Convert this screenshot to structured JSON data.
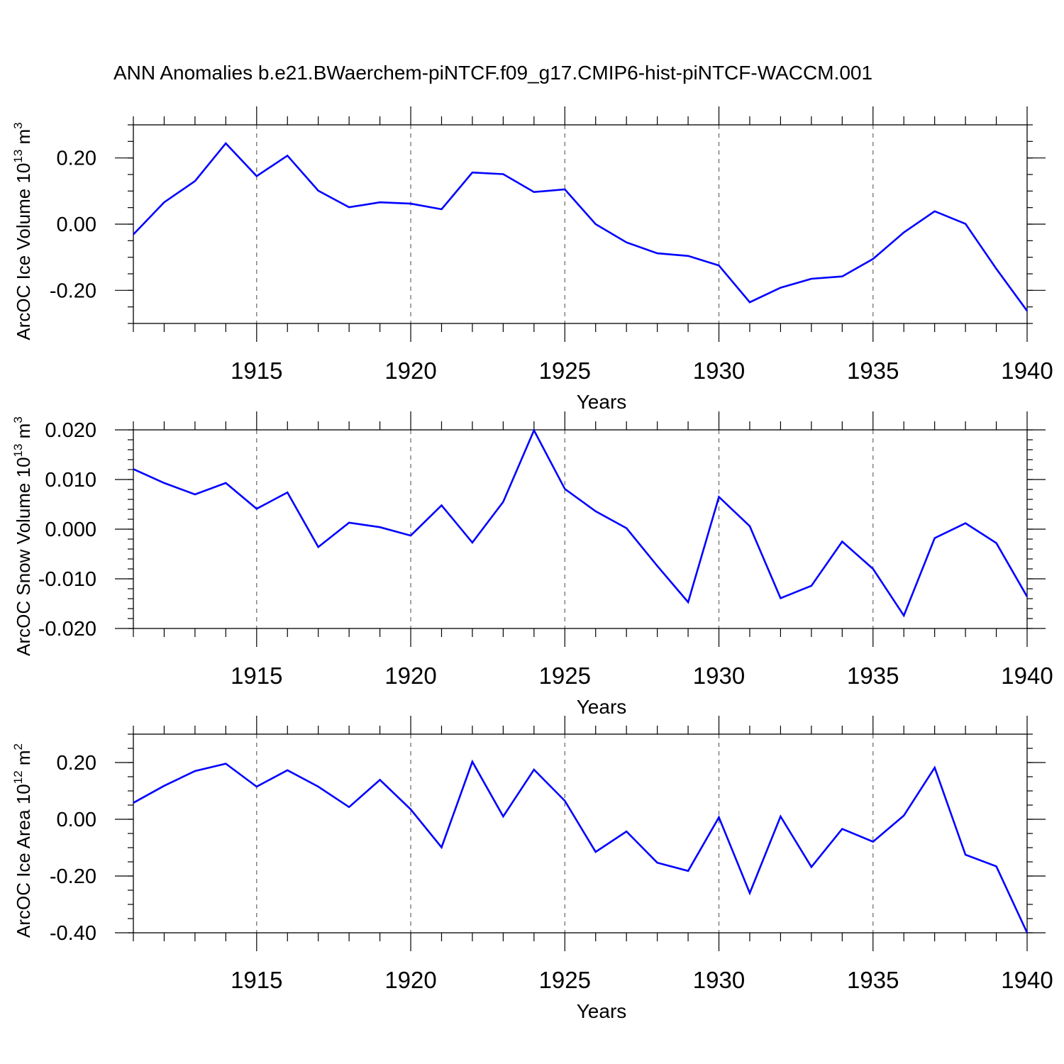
{
  "title": "ANN Anomalies b.e21.BWaerchem-piNTCF.f09_g17.CMIP6-hist-piNTCF-WACCM.001",
  "series_color": "#0000ff",
  "chart_data": [
    {
      "type": "line",
      "ylabel_main": "ArcOC Ice Volume 10",
      "ylabel_exp": "13",
      "ylabel_unit": " m",
      "ylabel_unit_exp": "3",
      "xlabel": "Years",
      "xlim": [
        1911,
        1940
      ],
      "ylim": [
        -0.3,
        0.3
      ],
      "yticks": [
        0.2,
        0.0,
        -0.2
      ],
      "ytick_labels": [
        "0.20",
        "0.00",
        "-0.20"
      ],
      "yminor_step": 0.05,
      "xticks": [
        1915,
        1920,
        1925,
        1930,
        1935,
        1940
      ],
      "xtick_labels": [
        "1915",
        "1920",
        "1925",
        "1930",
        "1935",
        "1940"
      ],
      "x": [
        1911,
        1912,
        1913,
        1914,
        1915,
        1916,
        1917,
        1918,
        1919,
        1920,
        1921,
        1922,
        1923,
        1924,
        1925,
        1926,
        1927,
        1928,
        1929,
        1930,
        1931,
        1932,
        1933,
        1934,
        1935,
        1936,
        1937,
        1938,
        1939,
        1940
      ],
      "values": [
        -0.031,
        0.066,
        0.13,
        0.244,
        0.145,
        0.207,
        0.101,
        0.051,
        0.066,
        0.062,
        0.045,
        0.156,
        0.151,
        0.097,
        0.105,
        0.0,
        -0.055,
        -0.088,
        -0.096,
        -0.125,
        -0.236,
        -0.192,
        -0.165,
        -0.158,
        -0.105,
        -0.025,
        0.039,
        0.001,
        -0.135,
        -0.262
      ]
    },
    {
      "type": "line",
      "ylabel_main": "ArcOC Snow Volume 10",
      "ylabel_exp": "13",
      "ylabel_unit": " m",
      "ylabel_unit_exp": "3",
      "xlabel": "Years",
      "xlim": [
        1911,
        1940
      ],
      "ylim": [
        -0.02,
        0.02
      ],
      "yticks": [
        0.02,
        0.01,
        0.0,
        -0.01,
        -0.02
      ],
      "ytick_labels": [
        "0.020",
        "0.010",
        "0.000",
        "-0.010",
        "-0.020"
      ],
      "yminor_step": 0.002,
      "xticks": [
        1915,
        1920,
        1925,
        1930,
        1935,
        1940
      ],
      "xtick_labels": [
        "1915",
        "1920",
        "1925",
        "1930",
        "1935",
        "1940"
      ],
      "x": [
        1911,
        1912,
        1913,
        1914,
        1915,
        1916,
        1917,
        1918,
        1919,
        1920,
        1921,
        1922,
        1923,
        1924,
        1925,
        1926,
        1927,
        1928,
        1929,
        1930,
        1931,
        1932,
        1933,
        1934,
        1935,
        1936,
        1937,
        1938,
        1939,
        1940
      ],
      "values": [
        0.0121,
        0.0093,
        0.007,
        0.0093,
        0.0041,
        0.0074,
        -0.0036,
        0.0013,
        0.0004,
        -0.0013,
        0.0048,
        -0.0027,
        0.0055,
        0.0199,
        0.0081,
        0.0036,
        0.0002,
        -0.0074,
        -0.0147,
        0.0065,
        0.0006,
        -0.0139,
        -0.0114,
        -0.0025,
        -0.008,
        -0.0174,
        -0.0018,
        0.0012,
        -0.0028,
        -0.0136
      ]
    },
    {
      "type": "line",
      "ylabel_main": "ArcOC Ice Area 10",
      "ylabel_exp": "12",
      "ylabel_unit": " m",
      "ylabel_unit_exp": "2",
      "xlabel": "Years",
      "xlim": [
        1911,
        1940
      ],
      "ylim": [
        -0.4,
        0.3
      ],
      "yticks": [
        0.2,
        0.0,
        -0.2,
        -0.4
      ],
      "ytick_labels": [
        "0.20",
        "0.00",
        "-0.20",
        "-0.40"
      ],
      "yminor_step": 0.05,
      "xticks": [
        1915,
        1920,
        1925,
        1930,
        1935,
        1940
      ],
      "xtick_labels": [
        "1915",
        "1920",
        "1925",
        "1930",
        "1935",
        "1940"
      ],
      "x": [
        1911,
        1912,
        1913,
        1914,
        1915,
        1916,
        1917,
        1918,
        1919,
        1920,
        1921,
        1922,
        1923,
        1924,
        1925,
        1926,
        1927,
        1928,
        1929,
        1930,
        1931,
        1932,
        1933,
        1934,
        1935,
        1936,
        1937,
        1938,
        1939,
        1940
      ],
      "values": [
        0.058,
        0.118,
        0.17,
        0.196,
        0.115,
        0.173,
        0.115,
        0.043,
        0.139,
        0.035,
        -0.099,
        0.203,
        0.01,
        0.175,
        0.065,
        -0.115,
        -0.043,
        -0.153,
        -0.182,
        0.007,
        -0.26,
        0.01,
        -0.168,
        -0.034,
        -0.079,
        0.013,
        0.182,
        -0.125,
        -0.166,
        -0.4
      ]
    }
  ]
}
